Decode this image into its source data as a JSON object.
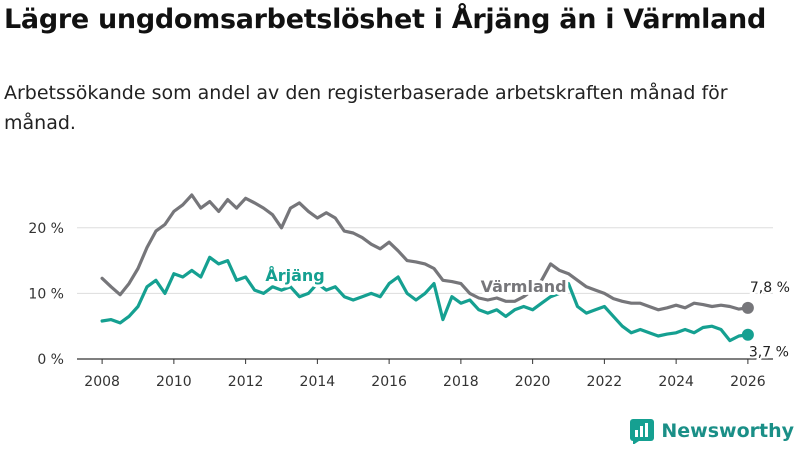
{
  "title": "Lägre ungdomsarbetslöshet i Årjäng än i Värmland",
  "subtitle": "Arbetssökande som andel av den registerbaserade arbetskraften månad för månad.",
  "brand": "Newsworthy",
  "colors": {
    "varmland": "#76767a",
    "arjang": "#15a091",
    "axis": "#333333"
  },
  "chart_data": {
    "type": "line",
    "title": "Lägre ungdomsarbetslöshet i Årjäng än i Värmland",
    "xlabel": "",
    "ylabel": "",
    "xlim": [
      2007.3,
      2026.7
    ],
    "ylim": [
      0,
      25
    ],
    "yticks": [
      {
        "value": 0,
        "label": "0 %"
      },
      {
        "value": 10,
        "label": "10 %"
      },
      {
        "value": 20,
        "label": "20 %"
      }
    ],
    "xticks": [
      {
        "value": 2008,
        "label": "2008"
      },
      {
        "value": 2010,
        "label": "2010"
      },
      {
        "value": 2012,
        "label": "2012"
      },
      {
        "value": 2014,
        "label": "2014"
      },
      {
        "value": 2016,
        "label": "2016"
      },
      {
        "value": 2018,
        "label": "2018"
      },
      {
        "value": 2020,
        "label": "2020"
      },
      {
        "value": 2022,
        "label": "2022"
      },
      {
        "value": 2024,
        "label": "2024"
      },
      {
        "value": 2026,
        "label": "2026"
      }
    ],
    "series": [
      {
        "name": "Värmland",
        "label": "Värmland",
        "color": "#76767a",
        "end_value_label": "7,8 %",
        "points": [
          [
            2008.0,
            12.3
          ],
          [
            2008.25,
            11.0
          ],
          [
            2008.5,
            9.8
          ],
          [
            2008.75,
            11.5
          ],
          [
            2009.0,
            13.8
          ],
          [
            2009.25,
            17.0
          ],
          [
            2009.5,
            19.5
          ],
          [
            2009.75,
            20.5
          ],
          [
            2010.0,
            22.5
          ],
          [
            2010.25,
            23.5
          ],
          [
            2010.5,
            25.0
          ],
          [
            2010.75,
            23.0
          ],
          [
            2011.0,
            24.0
          ],
          [
            2011.25,
            22.5
          ],
          [
            2011.5,
            24.3
          ],
          [
            2011.75,
            23.0
          ],
          [
            2012.0,
            24.5
          ],
          [
            2012.25,
            23.8
          ],
          [
            2012.5,
            23.0
          ],
          [
            2012.75,
            22.0
          ],
          [
            2013.0,
            20.0
          ],
          [
            2013.25,
            23.0
          ],
          [
            2013.5,
            23.8
          ],
          [
            2013.75,
            22.5
          ],
          [
            2014.0,
            21.5
          ],
          [
            2014.25,
            22.3
          ],
          [
            2014.5,
            21.5
          ],
          [
            2014.75,
            19.5
          ],
          [
            2015.0,
            19.2
          ],
          [
            2015.25,
            18.5
          ],
          [
            2015.5,
            17.5
          ],
          [
            2015.75,
            16.8
          ],
          [
            2016.0,
            17.8
          ],
          [
            2016.25,
            16.5
          ],
          [
            2016.5,
            15.0
          ],
          [
            2016.75,
            14.8
          ],
          [
            2017.0,
            14.5
          ],
          [
            2017.25,
            13.8
          ],
          [
            2017.5,
            12.0
          ],
          [
            2017.75,
            11.8
          ],
          [
            2018.0,
            11.5
          ],
          [
            2018.25,
            10.0
          ],
          [
            2018.5,
            9.3
          ],
          [
            2018.75,
            9.0
          ],
          [
            2019.0,
            9.3
          ],
          [
            2019.25,
            8.8
          ],
          [
            2019.5,
            8.8
          ],
          [
            2019.75,
            9.5
          ],
          [
            2020.0,
            10.5
          ],
          [
            2020.25,
            12.0
          ],
          [
            2020.5,
            14.5
          ],
          [
            2020.75,
            13.5
          ],
          [
            2021.0,
            13.0
          ],
          [
            2021.25,
            12.0
          ],
          [
            2021.5,
            11.0
          ],
          [
            2021.75,
            10.5
          ],
          [
            2022.0,
            10.0
          ],
          [
            2022.25,
            9.2
          ],
          [
            2022.5,
            8.8
          ],
          [
            2022.75,
            8.5
          ],
          [
            2023.0,
            8.5
          ],
          [
            2023.25,
            8.0
          ],
          [
            2023.5,
            7.5
          ],
          [
            2023.75,
            7.8
          ],
          [
            2024.0,
            8.2
          ],
          [
            2024.25,
            7.8
          ],
          [
            2024.5,
            8.5
          ],
          [
            2024.75,
            8.3
          ],
          [
            2025.0,
            8.0
          ],
          [
            2025.25,
            8.2
          ],
          [
            2025.5,
            8.0
          ],
          [
            2025.75,
            7.6
          ],
          [
            2026.0,
            7.8
          ]
        ]
      },
      {
        "name": "Årjäng",
        "label": "Årjäng",
        "color": "#15a091",
        "end_value_label": "3,7 %",
        "points": [
          [
            2008.0,
            5.8
          ],
          [
            2008.25,
            6.0
          ],
          [
            2008.5,
            5.5
          ],
          [
            2008.75,
            6.5
          ],
          [
            2009.0,
            8.0
          ],
          [
            2009.25,
            11.0
          ],
          [
            2009.5,
            12.0
          ],
          [
            2009.75,
            10.0
          ],
          [
            2010.0,
            13.0
          ],
          [
            2010.25,
            12.5
          ],
          [
            2010.5,
            13.5
          ],
          [
            2010.75,
            12.5
          ],
          [
            2011.0,
            15.5
          ],
          [
            2011.25,
            14.5
          ],
          [
            2011.5,
            15.0
          ],
          [
            2011.75,
            12.0
          ],
          [
            2012.0,
            12.5
          ],
          [
            2012.25,
            10.5
          ],
          [
            2012.5,
            10.0
          ],
          [
            2012.75,
            11.0
          ],
          [
            2013.0,
            10.5
          ],
          [
            2013.25,
            11.0
          ],
          [
            2013.5,
            9.5
          ],
          [
            2013.75,
            10.0
          ],
          [
            2014.0,
            11.5
          ],
          [
            2014.25,
            10.5
          ],
          [
            2014.5,
            11.0
          ],
          [
            2014.75,
            9.5
          ],
          [
            2015.0,
            9.0
          ],
          [
            2015.25,
            9.5
          ],
          [
            2015.5,
            10.0
          ],
          [
            2015.75,
            9.5
          ],
          [
            2016.0,
            11.5
          ],
          [
            2016.25,
            12.5
          ],
          [
            2016.5,
            10.0
          ],
          [
            2016.75,
            9.0
          ],
          [
            2017.0,
            10.0
          ],
          [
            2017.25,
            11.5
          ],
          [
            2017.5,
            6.0
          ],
          [
            2017.75,
            9.5
          ],
          [
            2018.0,
            8.5
          ],
          [
            2018.25,
            9.0
          ],
          [
            2018.5,
            7.5
          ],
          [
            2018.75,
            7.0
          ],
          [
            2019.0,
            7.5
          ],
          [
            2019.25,
            6.5
          ],
          [
            2019.5,
            7.5
          ],
          [
            2019.75,
            8.0
          ],
          [
            2020.0,
            7.5
          ],
          [
            2020.25,
            8.5
          ],
          [
            2020.5,
            9.5
          ],
          [
            2020.75,
            10.0
          ],
          [
            2021.0,
            11.5
          ],
          [
            2021.25,
            8.0
          ],
          [
            2021.5,
            7.0
          ],
          [
            2021.75,
            7.5
          ],
          [
            2022.0,
            8.0
          ],
          [
            2022.25,
            6.5
          ],
          [
            2022.5,
            5.0
          ],
          [
            2022.75,
            4.0
          ],
          [
            2023.0,
            4.5
          ],
          [
            2023.25,
            4.0
          ],
          [
            2023.5,
            3.5
          ],
          [
            2023.75,
            3.8
          ],
          [
            2024.0,
            4.0
          ],
          [
            2024.25,
            4.5
          ],
          [
            2024.5,
            4.0
          ],
          [
            2024.75,
            4.8
          ],
          [
            2025.0,
            5.0
          ],
          [
            2025.25,
            4.5
          ],
          [
            2025.5,
            2.8
          ],
          [
            2025.75,
            3.5
          ],
          [
            2026.0,
            3.7
          ]
        ]
      }
    ]
  }
}
